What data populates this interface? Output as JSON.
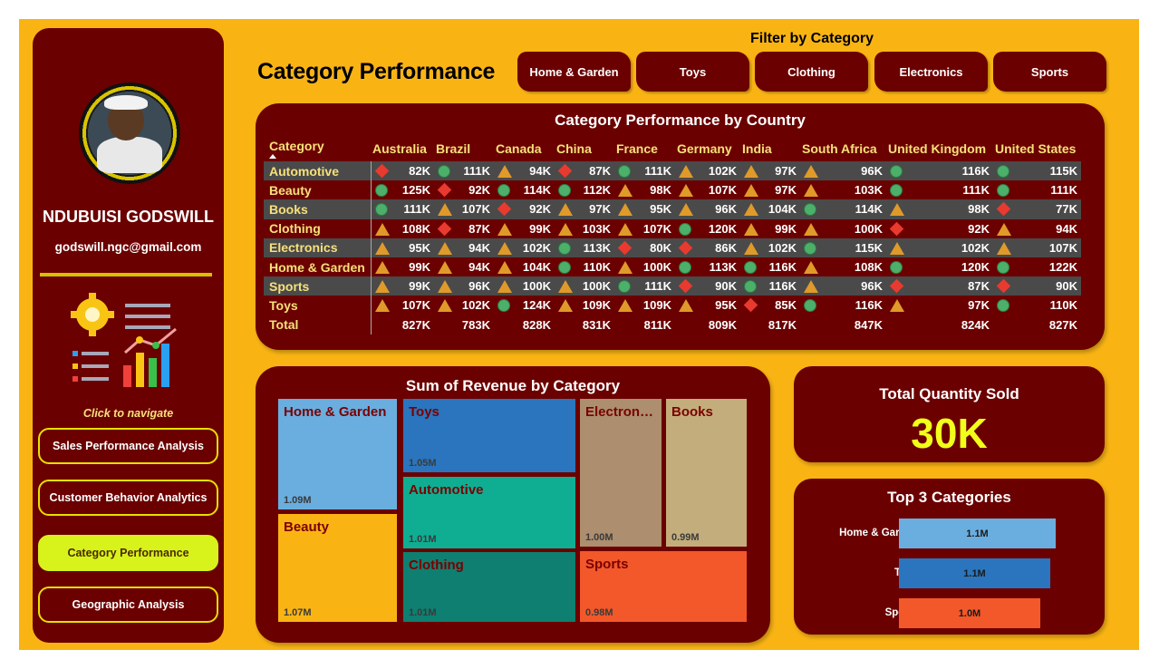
{
  "sidebar": {
    "user_name": "NDUBUISI GODSWILL",
    "user_email": "godswill.ngc@gmail.com",
    "nav_hint": "Click to navigate",
    "nav": [
      {
        "label": "Sales Performance Analysis",
        "active": false
      },
      {
        "label": "Customer Behavior Analytics",
        "active": false
      },
      {
        "label": "Category Performance",
        "active": true
      },
      {
        "label": "Geographic Analysis",
        "active": false
      }
    ]
  },
  "header": {
    "title": "Category Performance",
    "filter_label": "Filter by Category",
    "filters": [
      "Home & Garden",
      "Toys",
      "Clothing",
      "Electronics",
      "Sports"
    ]
  },
  "matrix": {
    "title": "Category Performance by Country",
    "row_header": "Category",
    "columns": [
      "Australia",
      "Brazil",
      "Canada",
      "China",
      "France",
      "Germany",
      "India",
      "South Africa",
      "United Kingdom",
      "United States"
    ],
    "rows": [
      {
        "category": "Automotive",
        "cells": [
          [
            "diamond",
            "82K"
          ],
          [
            "circle",
            "111K"
          ],
          [
            "tri",
            "94K"
          ],
          [
            "diamond",
            "87K"
          ],
          [
            "circle",
            "111K"
          ],
          [
            "tri",
            "102K"
          ],
          [
            "tri",
            "97K"
          ],
          [
            "tri",
            "96K"
          ],
          [
            "circle",
            "116K"
          ],
          [
            "circle",
            "115K"
          ]
        ]
      },
      {
        "category": "Beauty",
        "cells": [
          [
            "circle",
            "125K"
          ],
          [
            "diamond",
            "92K"
          ],
          [
            "circle",
            "114K"
          ],
          [
            "circle",
            "112K"
          ],
          [
            "tri",
            "98K"
          ],
          [
            "tri",
            "107K"
          ],
          [
            "tri",
            "97K"
          ],
          [
            "tri",
            "103K"
          ],
          [
            "circle",
            "111K"
          ],
          [
            "circle",
            "111K"
          ]
        ]
      },
      {
        "category": "Books",
        "cells": [
          [
            "circle",
            "111K"
          ],
          [
            "tri",
            "107K"
          ],
          [
            "diamond",
            "92K"
          ],
          [
            "tri",
            "97K"
          ],
          [
            "tri",
            "95K"
          ],
          [
            "tri",
            "96K"
          ],
          [
            "tri",
            "104K"
          ],
          [
            "circle",
            "114K"
          ],
          [
            "tri",
            "98K"
          ],
          [
            "diamond",
            "77K"
          ]
        ]
      },
      {
        "category": "Clothing",
        "cells": [
          [
            "tri",
            "108K"
          ],
          [
            "diamond",
            "87K"
          ],
          [
            "tri",
            "99K"
          ],
          [
            "tri",
            "103K"
          ],
          [
            "tri",
            "107K"
          ],
          [
            "circle",
            "120K"
          ],
          [
            "tri",
            "99K"
          ],
          [
            "tri",
            "100K"
          ],
          [
            "diamond",
            "92K"
          ],
          [
            "tri",
            "94K"
          ]
        ]
      },
      {
        "category": "Electronics",
        "cells": [
          [
            "tri",
            "95K"
          ],
          [
            "tri",
            "94K"
          ],
          [
            "tri",
            "102K"
          ],
          [
            "circle",
            "113K"
          ],
          [
            "diamond",
            "80K"
          ],
          [
            "diamond",
            "86K"
          ],
          [
            "tri",
            "102K"
          ],
          [
            "circle",
            "115K"
          ],
          [
            "tri",
            "102K"
          ],
          [
            "tri",
            "107K"
          ]
        ]
      },
      {
        "category": "Home & Garden",
        "cells": [
          [
            "tri",
            "99K"
          ],
          [
            "tri",
            "94K"
          ],
          [
            "tri",
            "104K"
          ],
          [
            "circle",
            "110K"
          ],
          [
            "tri",
            "100K"
          ],
          [
            "circle",
            "113K"
          ],
          [
            "circle",
            "116K"
          ],
          [
            "tri",
            "108K"
          ],
          [
            "circle",
            "120K"
          ],
          [
            "circle",
            "122K"
          ]
        ]
      },
      {
        "category": "Sports",
        "cells": [
          [
            "tri",
            "99K"
          ],
          [
            "tri",
            "96K"
          ],
          [
            "tri",
            "100K"
          ],
          [
            "tri",
            "100K"
          ],
          [
            "circle",
            "111K"
          ],
          [
            "diamond",
            "90K"
          ],
          [
            "circle",
            "116K"
          ],
          [
            "tri",
            "96K"
          ],
          [
            "diamond",
            "87K"
          ],
          [
            "diamond",
            "90K"
          ]
        ]
      },
      {
        "category": "Toys",
        "cells": [
          [
            "tri",
            "107K"
          ],
          [
            "tri",
            "102K"
          ],
          [
            "circle",
            "124K"
          ],
          [
            "tri",
            "109K"
          ],
          [
            "tri",
            "109K"
          ],
          [
            "tri",
            "95K"
          ],
          [
            "diamond",
            "85K"
          ],
          [
            "circle",
            "116K"
          ],
          [
            "tri",
            "97K"
          ],
          [
            "circle",
            "110K"
          ]
        ]
      }
    ],
    "total": {
      "label": "Total",
      "values": [
        "827K",
        "783K",
        "828K",
        "831K",
        "811K",
        "809K",
        "817K",
        "847K",
        "824K",
        "827K"
      ]
    }
  },
  "treemap": {
    "title": "Sum of Revenue by Category",
    "tiles": [
      {
        "name": "Home & Garden",
        "value": "1.09M",
        "color": "#6aaedf"
      },
      {
        "name": "Toys",
        "value": "1.05M",
        "color": "#2a75bd"
      },
      {
        "name": "Electron…",
        "value": "1.00M",
        "color": "#ad8e6e"
      },
      {
        "name": "Books",
        "value": "0.99M",
        "color": "#c4ad7c"
      },
      {
        "name": "Automotive",
        "value": "1.01M",
        "color": "#0fae92"
      },
      {
        "name": "Beauty",
        "value": "1.07M",
        "color": "#f9b414"
      },
      {
        "name": "Clothing",
        "value": "1.01M",
        "color": "#0e7f70"
      },
      {
        "name": "Sports",
        "value": "0.98M",
        "color": "#f2582a"
      }
    ]
  },
  "kpi": {
    "label": "Total Quantity Sold",
    "value": "30K"
  },
  "chart_data": {
    "type": "bar",
    "title": "Top 3 Categories",
    "orientation": "horizontal",
    "categories": [
      "Home & Garden",
      "Toys",
      "Sports"
    ],
    "values": [
      1.09,
      1.05,
      0.98
    ],
    "data_labels": [
      "1.1M",
      "1.1M",
      "1.0M"
    ],
    "colors": [
      "#6aaedf",
      "#2a75bd",
      "#f2582a"
    ],
    "grid": false
  }
}
